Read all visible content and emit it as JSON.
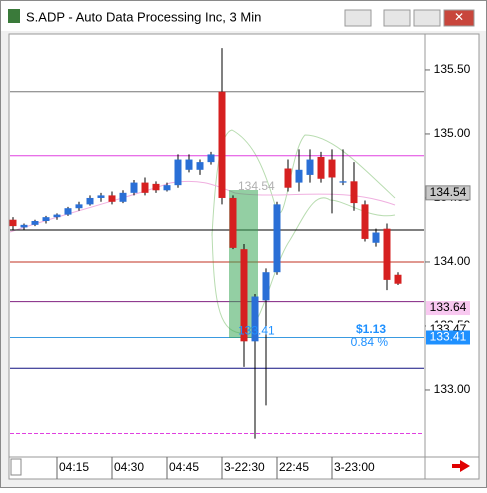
{
  "chart_data": {
    "type": "candlestick",
    "title": "S.ADP - Auto Data Processing Inc, 3 Min",
    "categories": [
      null,
      null,
      null,
      null,
      "04:15",
      null,
      null,
      null,
      null,
      "04:30",
      null,
      null,
      null,
      null,
      "04:45",
      null,
      null,
      null,
      null,
      "3-22:30",
      null,
      null,
      null,
      null,
      "22:45",
      null,
      null,
      null,
      null,
      "3-23:00",
      null,
      null,
      null,
      null,
      null,
      null
    ],
    "open": [
      134.33,
      134.27,
      134.29,
      134.32,
      134.35,
      134.37,
      134.42,
      134.45,
      134.5,
      134.52,
      134.47,
      134.54,
      134.62,
      134.61,
      134.56,
      134.6,
      134.72,
      134.72,
      134.78,
      135.33,
      134.5,
      134.1,
      133.38,
      133.7,
      133.92,
      134.73,
      134.62,
      134.68,
      134.82,
      134.8,
      134.62,
      134.63,
      134.45,
      134.15,
      134.26,
      133.9
    ],
    "high": [
      134.35,
      134.3,
      134.33,
      134.36,
      134.38,
      134.43,
      134.47,
      134.52,
      134.54,
      134.55,
      134.56,
      134.64,
      134.66,
      134.63,
      134.62,
      134.84,
      134.84,
      134.8,
      134.86,
      135.67,
      134.52,
      134.14,
      133.75,
      133.95,
      134.47,
      134.8,
      134.88,
      134.88,
      134.86,
      134.88,
      134.88,
      134.78,
      134.48,
      134.26,
      134.3,
      133.92
    ],
    "low": [
      134.25,
      134.25,
      134.28,
      134.3,
      134.33,
      134.36,
      134.4,
      134.44,
      134.47,
      134.45,
      134.46,
      134.52,
      134.52,
      134.54,
      134.55,
      134.58,
      134.7,
      134.68,
      134.76,
      134.45,
      134.1,
      133.18,
      132.62,
      132.88,
      133.9,
      134.55,
      134.55,
      134.62,
      134.62,
      134.38,
      134.6,
      134.4,
      134.16,
      134.12,
      133.78,
      133.82
    ],
    "close": [
      134.28,
      134.29,
      134.32,
      134.35,
      134.37,
      134.42,
      134.45,
      134.5,
      134.52,
      134.47,
      134.54,
      134.62,
      134.54,
      134.56,
      134.6,
      134.8,
      134.8,
      134.78,
      134.84,
      134.5,
      134.11,
      133.38,
      133.73,
      133.92,
      134.45,
      134.58,
      134.72,
      134.8,
      134.65,
      134.66,
      134.63,
      134.46,
      134.18,
      134.23,
      133.86,
      133.83
    ],
    "up_color": "#2a6fd6",
    "down_color": "#d62020",
    "ylim": [
      132.492,
      135.773
    ],
    "yticks": [
      {
        "value": 133,
        "label": "133.00"
      },
      {
        "value": 133.5,
        "label": "133.50"
      },
      {
        "value": 134,
        "label": "134.00"
      },
      {
        "value": 134.5,
        "label": "134.50"
      },
      {
        "value": 135,
        "label": "135.00"
      },
      {
        "value": 135.5,
        "label": "135.50"
      }
    ],
    "levels": [
      {
        "value": 135.33,
        "color": "#777777"
      },
      {
        "value": 134.83,
        "color": "#e040e0"
      },
      {
        "value": 134.25,
        "color": "#000000"
      },
      {
        "value": 134.0,
        "color": "#c03020"
      },
      {
        "value": 133.69,
        "color": "#802080"
      },
      {
        "value": 133.41,
        "color": "#3a9ae0"
      },
      {
        "value": 133.17,
        "color": "#101080"
      },
      {
        "value": 132.66,
        "color": "#e040e0"
      }
    ],
    "price_tags": [
      {
        "value": 134.54,
        "label": "134.54",
        "color": "#c8c8c8",
        "text_color": "#000000"
      },
      {
        "value": 133.64,
        "label": "133.64",
        "color": "#f8c8f0",
        "text_color": "#000000"
      },
      {
        "value": 133.47,
        "label": "133.47",
        "color": "#ffffff",
        "text_color": "#000000"
      },
      {
        "value": 133.41,
        "label": "133.41",
        "color": "#1e90ff",
        "text_color": "#ffffff"
      }
    ],
    "measure": {
      "price_change": {
        "value": 1.13,
        "label": "$1.13"
      },
      "percent_change": {
        "value": 0.84,
        "label": "0.84 %"
      }
    },
    "chart_labels": [
      {
        "value": 134.54,
        "label": "134.54"
      },
      {
        "value": 133.41,
        "label": "133.41"
      }
    ]
  }
}
